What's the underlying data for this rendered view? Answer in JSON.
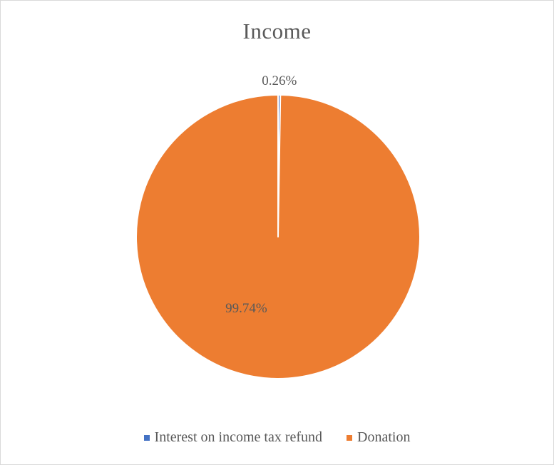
{
  "chart_data": {
    "type": "pie",
    "title": "Income",
    "slices": [
      {
        "label": "Interest on income tax refund",
        "percent": 0.26,
        "value_label": "0.26%",
        "color": "#4472c4"
      },
      {
        "label": "Donation",
        "percent": 99.74,
        "value_label": "99.74%",
        "color": "#ed7d31"
      }
    ],
    "legend_position": "bottom"
  }
}
